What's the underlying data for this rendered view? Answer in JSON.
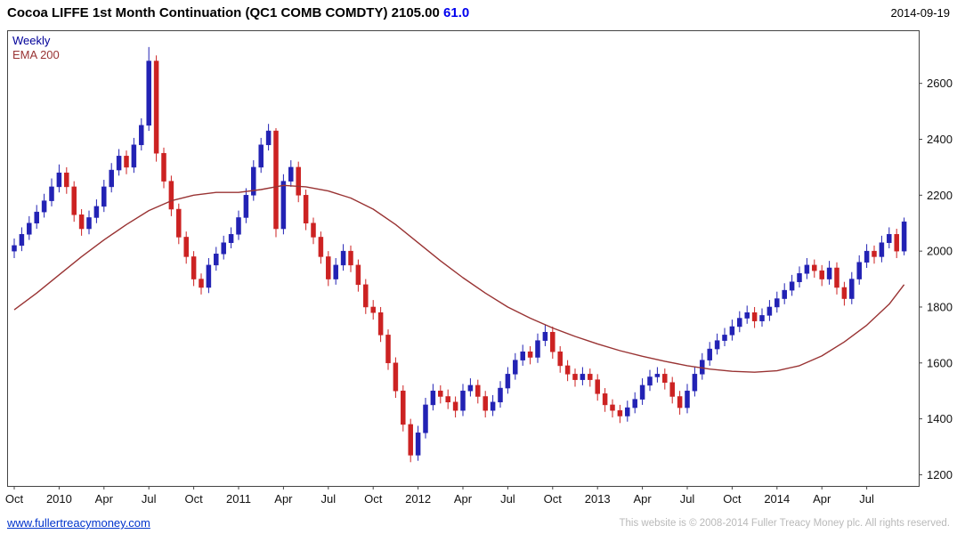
{
  "header": {
    "title": "Cocoa LIFFE 1st Month Continuation (QC1 COMB COMDTY)",
    "last_price": "2105.00",
    "change": "61.0",
    "date": "2014-09-19"
  },
  "legend": {
    "timeframe": "Weekly",
    "overlay": "EMA 200"
  },
  "footer": {
    "link": "www.fullertreacymoney.com",
    "copyright": "This website is © 2008-2014 Fuller Treacy Money plc. All rights reserved."
  },
  "colors": {
    "up": "#2222b4",
    "down": "#cc2222",
    "ema": "#993333",
    "change_text": "#0000ee",
    "legend_timeframe": "#000099",
    "link": "#0033cc",
    "copyright": "#b9b9b9",
    "axis_text": "#111111",
    "border": "#444444"
  },
  "chart_data": {
    "type": "candlestick",
    "title": "Cocoa LIFFE 1st Month Continuation (QC1 COMB COMDTY) 2105.00 +61.0",
    "timeframe": "Weekly",
    "overlay": "EMA 200 (red-brown line)",
    "legend_position": "top-left",
    "grid": false,
    "y_axis_side": "right",
    "y_ticks": [
      2600,
      2400,
      2200,
      2000,
      1800,
      1600,
      1400,
      1200
    ],
    "y_range": [
      1160,
      2790
    ],
    "x_ticks": [
      {
        "label": "Oct",
        "i": 0
      },
      {
        "label": "2010",
        "i": 6
      },
      {
        "label": "Apr",
        "i": 12
      },
      {
        "label": "Jul",
        "i": 18
      },
      {
        "label": "Oct",
        "i": 24
      },
      {
        "label": "2011",
        "i": 30
      },
      {
        "label": "Apr",
        "i": 36
      },
      {
        "label": "Jul",
        "i": 42
      },
      {
        "label": "Oct",
        "i": 48
      },
      {
        "label": "2012",
        "i": 54
      },
      {
        "label": "Apr",
        "i": 60
      },
      {
        "label": "Jul",
        "i": 66
      },
      {
        "label": "Oct",
        "i": 72
      },
      {
        "label": "2013",
        "i": 78
      },
      {
        "label": "Apr",
        "i": 84
      },
      {
        "label": "Jul",
        "i": 90
      },
      {
        "label": "Oct",
        "i": 96
      },
      {
        "label": "2014",
        "i": 102
      },
      {
        "label": "Apr",
        "i": 108
      },
      {
        "label": "Jul",
        "i": 114
      }
    ],
    "candles": [
      [
        2000,
        2045,
        1975,
        2020
      ],
      [
        2020,
        2085,
        2000,
        2060
      ],
      [
        2060,
        2125,
        2040,
        2100
      ],
      [
        2100,
        2165,
        2080,
        2140
      ],
      [
        2140,
        2205,
        2120,
        2180
      ],
      [
        2180,
        2260,
        2160,
        2230
      ],
      [
        2230,
        2310,
        2210,
        2280
      ],
      [
        2280,
        2300,
        2205,
        2230
      ],
      [
        2230,
        2250,
        2105,
        2130
      ],
      [
        2130,
        2150,
        2055,
        2080
      ],
      [
        2080,
        2145,
        2060,
        2120
      ],
      [
        2120,
        2185,
        2100,
        2160
      ],
      [
        2160,
        2255,
        2140,
        2230
      ],
      [
        2230,
        2315,
        2210,
        2290
      ],
      [
        2290,
        2365,
        2270,
        2340
      ],
      [
        2340,
        2360,
        2275,
        2300
      ],
      [
        2300,
        2405,
        2280,
        2380
      ],
      [
        2380,
        2475,
        2360,
        2450
      ],
      [
        2450,
        2730,
        2430,
        2680
      ],
      [
        2680,
        2700,
        2320,
        2350
      ],
      [
        2350,
        2370,
        2225,
        2250
      ],
      [
        2250,
        2270,
        2125,
        2150
      ],
      [
        2150,
        2170,
        2025,
        2050
      ],
      [
        2050,
        2070,
        1955,
        1980
      ],
      [
        1980,
        2000,
        1875,
        1900
      ],
      [
        1900,
        1920,
        1845,
        1870
      ],
      [
        1870,
        1975,
        1850,
        1950
      ],
      [
        1950,
        2015,
        1930,
        1990
      ],
      [
        1990,
        2055,
        1970,
        2030
      ],
      [
        2030,
        2085,
        2010,
        2060
      ],
      [
        2060,
        2145,
        2040,
        2120
      ],
      [
        2120,
        2225,
        2100,
        2200
      ],
      [
        2200,
        2325,
        2180,
        2300
      ],
      [
        2300,
        2405,
        2280,
        2380
      ],
      [
        2380,
        2455,
        2360,
        2430
      ],
      [
        2430,
        2440,
        2050,
        2080
      ],
      [
        2080,
        2275,
        2060,
        2250
      ],
      [
        2250,
        2325,
        2230,
        2300
      ],
      [
        2300,
        2320,
        2175,
        2200
      ],
      [
        2200,
        2220,
        2075,
        2100
      ],
      [
        2100,
        2120,
        2025,
        2050
      ],
      [
        2050,
        2070,
        1955,
        1980
      ],
      [
        1980,
        2000,
        1875,
        1900
      ],
      [
        1900,
        1975,
        1880,
        1950
      ],
      [
        1950,
        2025,
        1930,
        2000
      ],
      [
        2000,
        2020,
        1925,
        1950
      ],
      [
        1950,
        1970,
        1855,
        1880
      ],
      [
        1880,
        1900,
        1775,
        1800
      ],
      [
        1800,
        1825,
        1755,
        1780
      ],
      [
        1780,
        1800,
        1675,
        1700
      ],
      [
        1700,
        1720,
        1575,
        1600
      ],
      [
        1600,
        1620,
        1475,
        1500
      ],
      [
        1500,
        1520,
        1355,
        1380
      ],
      [
        1380,
        1400,
        1245,
        1270
      ],
      [
        1270,
        1375,
        1250,
        1350
      ],
      [
        1350,
        1475,
        1330,
        1450
      ],
      [
        1450,
        1525,
        1430,
        1500
      ],
      [
        1500,
        1520,
        1455,
        1480
      ],
      [
        1480,
        1505,
        1435,
        1460
      ],
      [
        1460,
        1480,
        1405,
        1430
      ],
      [
        1430,
        1525,
        1410,
        1500
      ],
      [
        1500,
        1545,
        1480,
        1520
      ],
      [
        1520,
        1540,
        1455,
        1480
      ],
      [
        1480,
        1500,
        1405,
        1430
      ],
      [
        1430,
        1485,
        1410,
        1460
      ],
      [
        1460,
        1535,
        1440,
        1510
      ],
      [
        1510,
        1585,
        1490,
        1560
      ],
      [
        1560,
        1635,
        1540,
        1610
      ],
      [
        1610,
        1665,
        1590,
        1640
      ],
      [
        1640,
        1660,
        1595,
        1620
      ],
      [
        1620,
        1705,
        1600,
        1680
      ],
      [
        1680,
        1735,
        1660,
        1710
      ],
      [
        1710,
        1730,
        1615,
        1640
      ],
      [
        1640,
        1660,
        1565,
        1590
      ],
      [
        1590,
        1610,
        1535,
        1560
      ],
      [
        1560,
        1580,
        1515,
        1540
      ],
      [
        1540,
        1585,
        1520,
        1560
      ],
      [
        1560,
        1580,
        1515,
        1540
      ],
      [
        1540,
        1560,
        1465,
        1490
      ],
      [
        1490,
        1510,
        1425,
        1450
      ],
      [
        1450,
        1470,
        1405,
        1430
      ],
      [
        1430,
        1450,
        1385,
        1410
      ],
      [
        1410,
        1465,
        1390,
        1440
      ],
      [
        1440,
        1495,
        1420,
        1470
      ],
      [
        1470,
        1545,
        1450,
        1520
      ],
      [
        1520,
        1575,
        1500,
        1550
      ],
      [
        1550,
        1585,
        1530,
        1560
      ],
      [
        1560,
        1580,
        1505,
        1530
      ],
      [
        1530,
        1550,
        1455,
        1480
      ],
      [
        1480,
        1500,
        1415,
        1440
      ],
      [
        1440,
        1525,
        1420,
        1500
      ],
      [
        1500,
        1585,
        1480,
        1560
      ],
      [
        1560,
        1635,
        1540,
        1610
      ],
      [
        1610,
        1675,
        1590,
        1650
      ],
      [
        1650,
        1705,
        1630,
        1680
      ],
      [
        1680,
        1725,
        1660,
        1700
      ],
      [
        1700,
        1755,
        1680,
        1730
      ],
      [
        1730,
        1785,
        1710,
        1760
      ],
      [
        1760,
        1805,
        1740,
        1780
      ],
      [
        1780,
        1800,
        1725,
        1750
      ],
      [
        1750,
        1795,
        1730,
        1770
      ],
      [
        1770,
        1825,
        1750,
        1800
      ],
      [
        1800,
        1855,
        1780,
        1830
      ],
      [
        1830,
        1885,
        1810,
        1860
      ],
      [
        1860,
        1915,
        1840,
        1890
      ],
      [
        1890,
        1945,
        1870,
        1920
      ],
      [
        1920,
        1975,
        1900,
        1950
      ],
      [
        1950,
        1970,
        1905,
        1930
      ],
      [
        1930,
        1950,
        1875,
        1900
      ],
      [
        1900,
        1965,
        1880,
        1940
      ],
      [
        1940,
        1960,
        1845,
        1870
      ],
      [
        1870,
        1890,
        1805,
        1830
      ],
      [
        1830,
        1925,
        1810,
        1900
      ],
      [
        1900,
        1985,
        1880,
        1960
      ],
      [
        1960,
        2025,
        1940,
        2000
      ],
      [
        2000,
        2020,
        1955,
        1980
      ],
      [
        1980,
        2055,
        1960,
        2030
      ],
      [
        2030,
        2085,
        2010,
        2060
      ],
      [
        2060,
        2080,
        1975,
        2000
      ],
      [
        2000,
        2120,
        1985,
        2105
      ]
    ],
    "ema_points": [
      [
        0,
        1790
      ],
      [
        3,
        1850
      ],
      [
        6,
        1915
      ],
      [
        9,
        1980
      ],
      [
        12,
        2040
      ],
      [
        15,
        2095
      ],
      [
        18,
        2145
      ],
      [
        21,
        2180
      ],
      [
        24,
        2200
      ],
      [
        27,
        2210
      ],
      [
        30,
        2210
      ],
      [
        33,
        2220
      ],
      [
        36,
        2235
      ],
      [
        39,
        2230
      ],
      [
        42,
        2215
      ],
      [
        45,
        2190
      ],
      [
        48,
        2150
      ],
      [
        51,
        2095
      ],
      [
        54,
        2030
      ],
      [
        57,
        1965
      ],
      [
        60,
        1905
      ],
      [
        63,
        1850
      ],
      [
        66,
        1800
      ],
      [
        69,
        1760
      ],
      [
        72,
        1725
      ],
      [
        75,
        1695
      ],
      [
        78,
        1668
      ],
      [
        81,
        1644
      ],
      [
        84,
        1624
      ],
      [
        87,
        1606
      ],
      [
        90,
        1590
      ],
      [
        93,
        1578
      ],
      [
        96,
        1570
      ],
      [
        99,
        1567
      ],
      [
        102,
        1572
      ],
      [
        105,
        1590
      ],
      [
        108,
        1625
      ],
      [
        111,
        1675
      ],
      [
        114,
        1735
      ],
      [
        117,
        1810
      ],
      [
        119,
        1880
      ]
    ]
  }
}
